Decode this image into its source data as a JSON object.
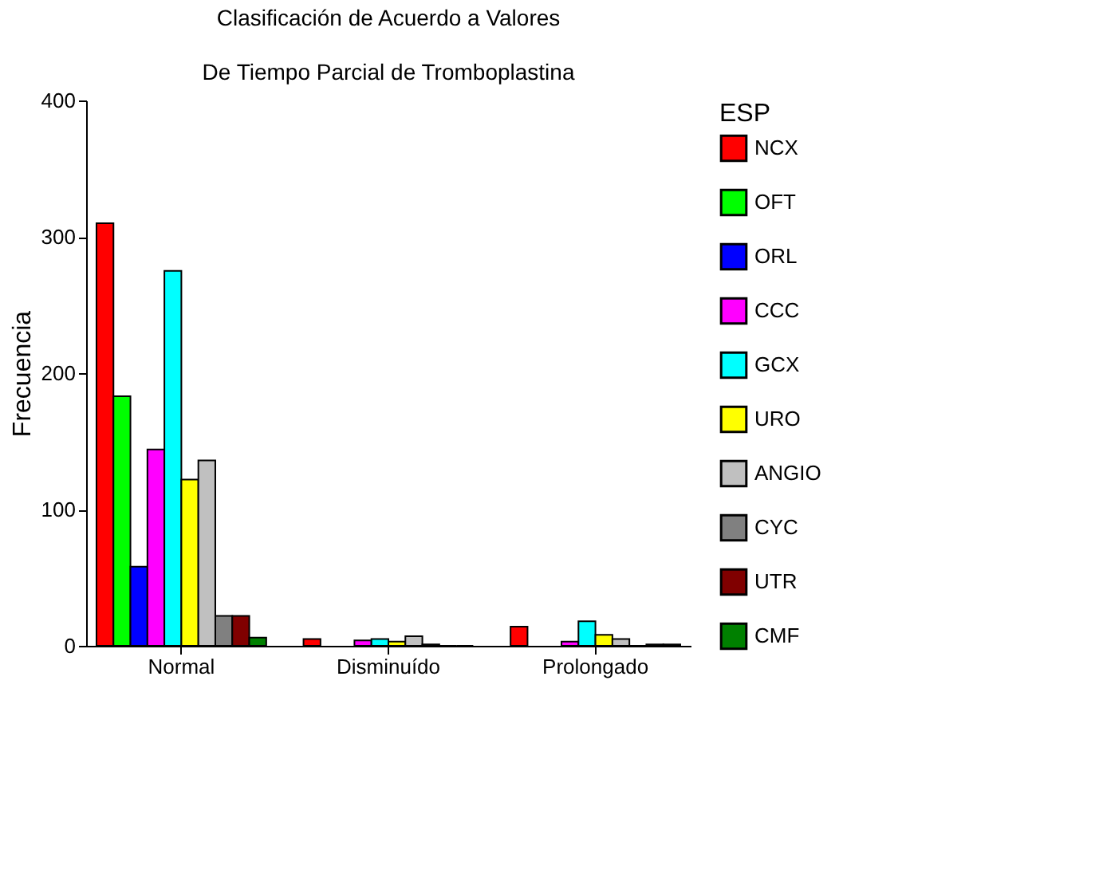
{
  "chart_data": {
    "type": "bar",
    "title": [
      "Clasificación de Acuerdo a Valores",
      "De Tiempo Parcial de Tromboplastina"
    ],
    "ylabel": "Frecuencia",
    "legend_title": "ESP",
    "legend": "right",
    "grid": false,
    "categories": [
      "Normal",
      "Disminuído",
      "Prolongado"
    ],
    "ylim": [
      0,
      400
    ],
    "yticks": [
      0,
      100,
      200,
      300,
      400
    ],
    "series": [
      {
        "name": "NCX",
        "color": "#ff0000",
        "values": [
          310,
          5,
          14
        ]
      },
      {
        "name": "OFT",
        "color": "#00ff00",
        "values": [
          183,
          null,
          null
        ]
      },
      {
        "name": "ORL",
        "color": "#0000ff",
        "values": [
          58,
          null,
          null
        ]
      },
      {
        "name": "CCC",
        "color": "#ff00ff",
        "values": [
          144,
          4,
          3
        ]
      },
      {
        "name": "GCX",
        "color": "#00ffff",
        "values": [
          275,
          5,
          18
        ]
      },
      {
        "name": "URO",
        "color": "#ffff00",
        "values": [
          122,
          3,
          8
        ]
      },
      {
        "name": "ANGIO",
        "color": "#c0c0c0",
        "values": [
          136,
          7,
          5
        ]
      },
      {
        "name": "CYC",
        "color": "#808080",
        "values": [
          22,
          1,
          0
        ]
      },
      {
        "name": "UTR",
        "color": "#800000",
        "values": [
          22,
          0,
          1
        ]
      },
      {
        "name": "CMF",
        "color": "#008000",
        "values": [
          6,
          0,
          1
        ]
      }
    ]
  }
}
